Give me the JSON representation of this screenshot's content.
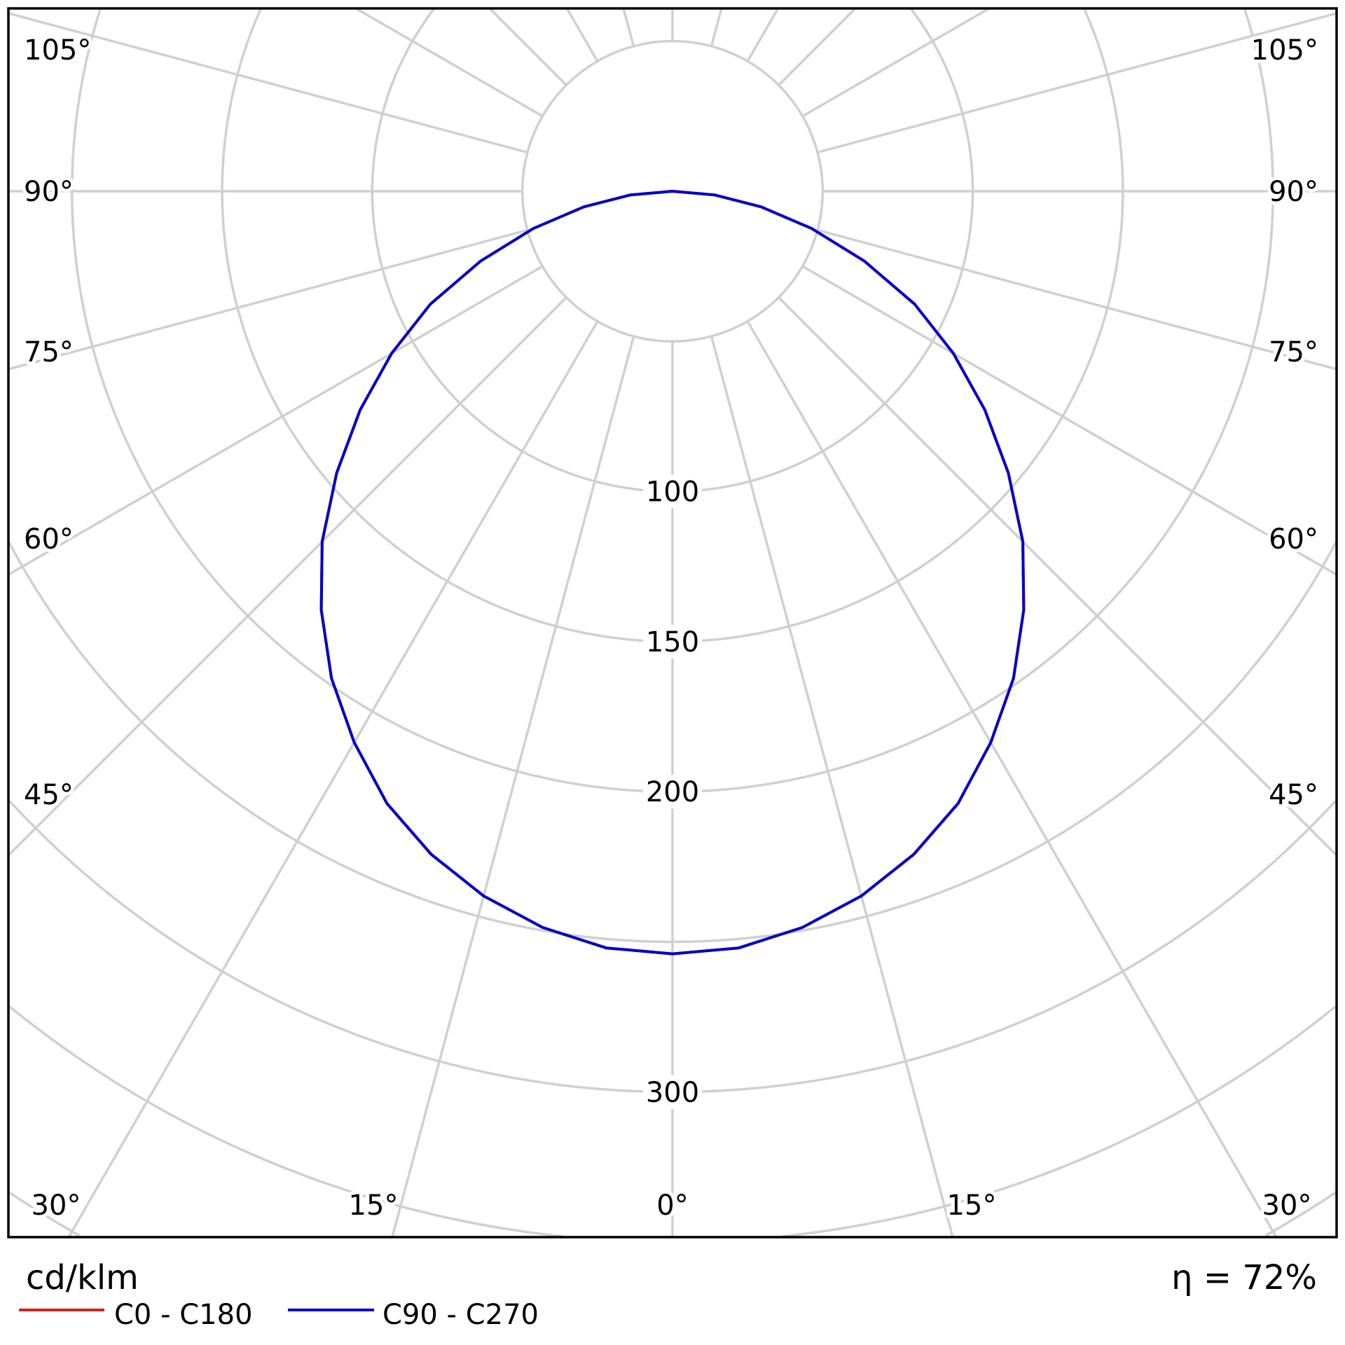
{
  "chart_data": {
    "type": "polar",
    "unit_label": "cd/klm",
    "efficiency_label": "η = 72%",
    "radial_ticks": [
      {
        "value": 100,
        "label": "100"
      },
      {
        "value": 150,
        "label": "150"
      },
      {
        "value": 200,
        "label": "200"
      },
      {
        "value": 300,
        "label": "300"
      }
    ],
    "radial_grid_step": 50,
    "angle_grid_step": 15,
    "angle_labels_bottom": [
      "30°",
      "15°",
      "0°",
      "15°",
      "30°"
    ],
    "angle_labels_side": [
      "45°",
      "60°",
      "75°",
      "90°",
      "105°"
    ],
    "grid": true,
    "legend_position": "bottom-left",
    "angles": [
      0,
      5,
      10,
      15,
      20,
      25,
      30,
      35,
      40,
      45,
      50,
      55,
      60,
      65,
      70,
      75,
      80,
      85,
      90
    ],
    "series": [
      {
        "name": "C0 - C180",
        "color": "#d42020",
        "values": [
          254,
          253,
          249,
          243,
          235,
          225,
          212,
          198,
          182,
          165,
          146,
          127,
          108,
          89,
          68,
          48,
          30,
          14,
          0
        ]
      },
      {
        "name": "C90 - C270",
        "color": "#0000cc",
        "values": [
          254,
          253,
          249,
          243,
          235,
          225,
          212,
          198,
          182,
          165,
          146,
          127,
          108,
          89,
          68,
          48,
          30,
          14,
          0
        ]
      }
    ],
    "colors": {
      "grid": "#d0d0d0",
      "frame": "#000000"
    }
  }
}
